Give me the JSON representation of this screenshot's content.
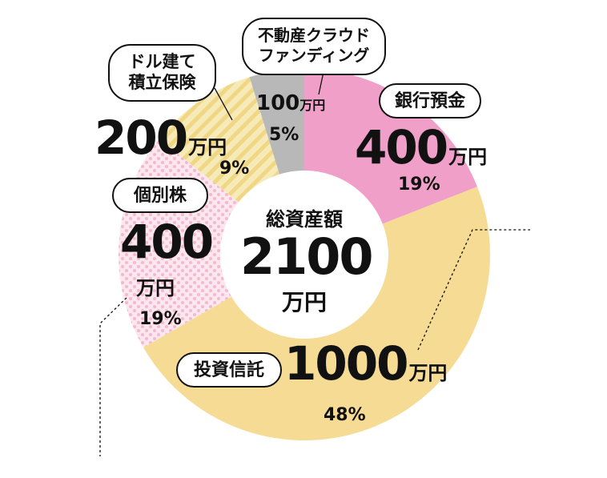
{
  "chart_data": {
    "type": "pie",
    "title": "総資産額",
    "total": {
      "value": "2100",
      "unit": "万円"
    },
    "slices": [
      {
        "label": "銀行預金",
        "value": 400,
        "unit": "万円",
        "percent": "19%",
        "color": "#f0a0c8"
      },
      {
        "label": "投資信託",
        "value": 1000,
        "unit": "万円",
        "percent": "48%",
        "color": "#f5db94"
      },
      {
        "label": "個別株",
        "value": 400,
        "unit": "万円",
        "percent": "19%",
        "color": "#fce4ec",
        "pattern": "dots"
      },
      {
        "label_lines": [
          "ドル建て",
          "積立保険"
        ],
        "value": 200,
        "unit": "万円",
        "percent": "9%",
        "color": "#f5e6a8",
        "pattern": "stripes"
      },
      {
        "label_lines": [
          "不動産クラウド",
          "ファンディング"
        ],
        "value": 100,
        "unit": "万円",
        "percent": "5%",
        "color": "#b8b8b8"
      }
    ]
  },
  "colors": {
    "ink": "#111111",
    "hole": "#ffffff"
  }
}
